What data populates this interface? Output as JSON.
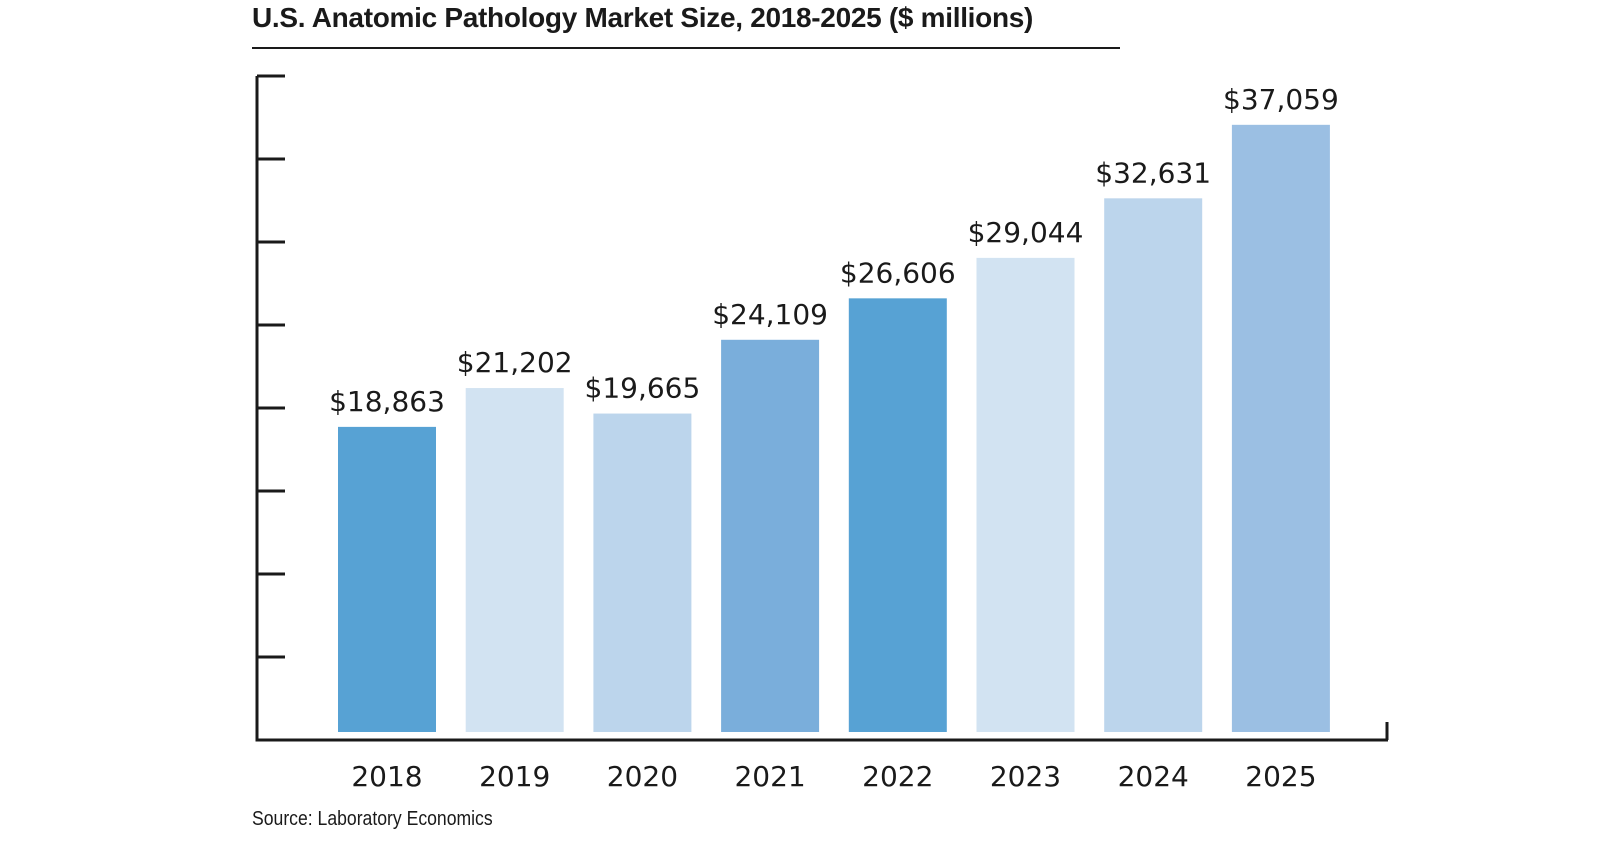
{
  "title": "U.S. Anatomic Pathology Market Size, 2018-2025 ($ millions)",
  "source": "Source: Laboratory Economics",
  "chart_data": {
    "type": "bar",
    "title": "U.S. Anatomic Pathology Market Size, 2018-2025 ($ millions)",
    "xlabel": "",
    "ylabel": "",
    "categories": [
      "2018",
      "2019",
      "2020",
      "2021",
      "2022",
      "2023",
      "2024",
      "2025"
    ],
    "values": [
      18863,
      21202,
      19665,
      24109,
      26606,
      29044,
      32631,
      37059
    ],
    "data_labels": [
      "$18,863",
      "$21,202",
      "$19,665",
      "$24,109",
      "$26,606",
      "$29,044",
      "$32,631",
      "$37,059"
    ],
    "ylim": [
      0,
      40000
    ],
    "y_tick_marks": [
      5000,
      10000,
      15000,
      20000,
      25000,
      30000,
      35000,
      40000
    ],
    "y_tick_labels_shown": false,
    "grid": false,
    "legend": "none",
    "bar_colors": [
      "#57a2d4",
      "#d2e3f2",
      "#bcd5ec",
      "#7aaedb",
      "#57a2d4",
      "#d2e3f2",
      "#bcd5ec",
      "#9bbfe3"
    ],
    "axis_color": "#1a1a1a"
  }
}
